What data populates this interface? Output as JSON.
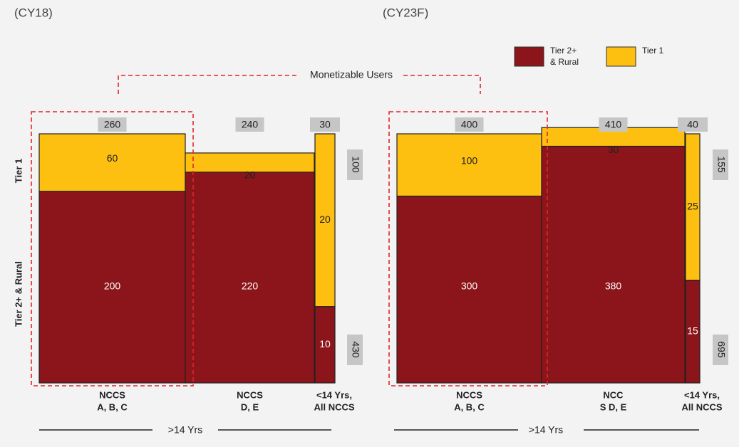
{
  "colors": {
    "tier2_rural": "#8b151a",
    "tier1": "#fdbf10",
    "total_box": "#c6c6c6",
    "dashed": "#e0262d",
    "background": "#f3f3f3"
  },
  "legend": [
    {
      "label_lines": [
        "Tier 2+",
        "& Rural"
      ],
      "color": "#8b151a"
    },
    {
      "label_lines": [
        "Tier 1"
      ],
      "color": "#fdbf10"
    }
  ],
  "monetizable_label": "Monetizable Users",
  "row_labels": {
    "tier1": "Tier 1",
    "tier2_rural": "Tier 2+ & Rural"
  },
  "age_label": ">14 Yrs",
  "chart_data": [
    {
      "type": "bar",
      "title": "(CY18)",
      "categories": [
        [
          "NCCS",
          "A, B, C"
        ],
        [
          "NCCS",
          "D, E"
        ],
        [
          "<14 Yrs,",
          "All NCCS"
        ]
      ],
      "series": [
        {
          "name": "Tier 2+ & Rural",
          "values": [
            200,
            220,
            10
          ]
        },
        {
          "name": "Tier 1",
          "values": [
            60,
            20,
            20
          ]
        }
      ],
      "column_totals": [
        "260",
        "240",
        "30"
      ],
      "row_totals": {
        "tier1": "100",
        "tier2_rural": "430"
      }
    },
    {
      "type": "bar",
      "title": "(CY23F)",
      "categories": [
        [
          "NCCS",
          "A, B, C"
        ],
        [
          "NCC",
          "S D, E"
        ],
        [
          "<14 Yrs,",
          "All NCCS"
        ]
      ],
      "series": [
        {
          "name": "Tier 2+ & Rural",
          "values": [
            300,
            380,
            15
          ]
        },
        {
          "name": "Tier 1",
          "values": [
            100,
            30,
            25
          ]
        }
      ],
      "column_totals": [
        "400",
        "410",
        "40"
      ],
      "row_totals": {
        "tier1": "155",
        "tier2_rural": "695"
      }
    }
  ]
}
